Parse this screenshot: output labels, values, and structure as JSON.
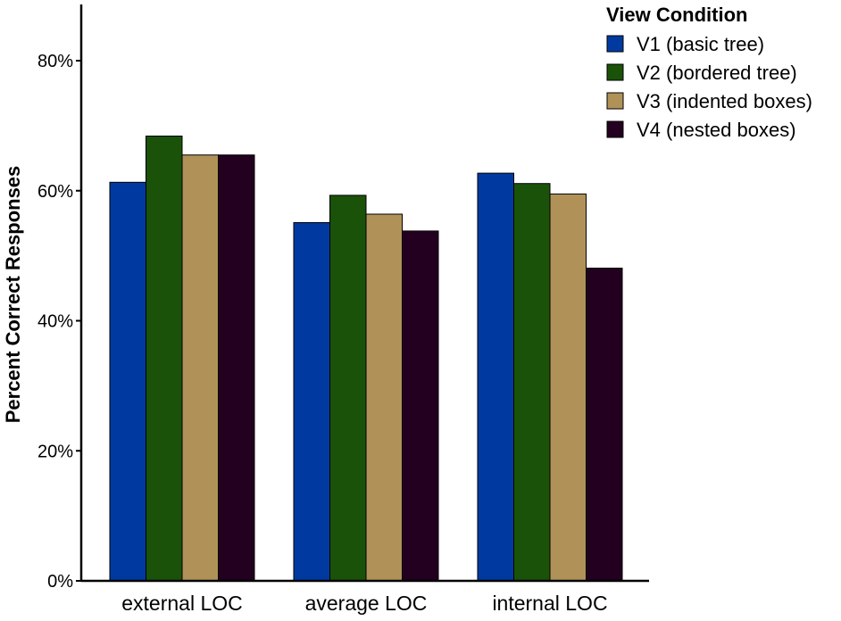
{
  "chart_data": {
    "type": "bar",
    "ylabel": "Percent Correct Responses",
    "xlabel": "",
    "ylim": [
      0,
      0.89
    ],
    "yticks": [
      {
        "value": 0,
        "label": "0%"
      },
      {
        "value": 0.2,
        "label": "20%"
      },
      {
        "value": 0.4,
        "label": "40%"
      },
      {
        "value": 0.6,
        "label": "60%"
      },
      {
        "value": 0.8,
        "label": "80%"
      }
    ],
    "categories": [
      "external LOC",
      "average LOC",
      "internal LOC"
    ],
    "legend": {
      "title": "View Condition",
      "position": "top-right"
    },
    "grid": false,
    "series": [
      {
        "name": "V1 (basic tree)",
        "color": "#003aa0",
        "values": [
          0.613,
          0.551,
          0.627
        ]
      },
      {
        "name": "V2 (bordered tree)",
        "color": "#1b520a",
        "values": [
          0.684,
          0.593,
          0.611
        ]
      },
      {
        "name": "V3 (indented boxes)",
        "color": "#b09258",
        "values": [
          0.655,
          0.564,
          0.595
        ]
      },
      {
        "name": "V4 (nested boxes)",
        "color": "#240020",
        "values": [
          0.655,
          0.538,
          0.481
        ]
      }
    ]
  }
}
